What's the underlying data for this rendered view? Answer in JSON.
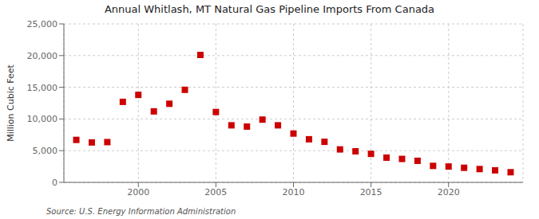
{
  "chart_data": {
    "type": "scatter",
    "title": "Annual Whitlash, MT Natural Gas Pipeline Imports From Canada",
    "ylabel": "Million Cubic Feet",
    "source": "Source: U.S. Energy Information Administration",
    "color": "#cc0000",
    "marker": "square",
    "grid": true,
    "x": [
      1996,
      1997,
      1998,
      1999,
      2000,
      2001,
      2002,
      2003,
      2004,
      2005,
      2006,
      2007,
      2008,
      2009,
      2010,
      2011,
      2012,
      2013,
      2014,
      2015,
      2016,
      2017,
      2018,
      2019,
      2020,
      2021,
      2022,
      2023,
      2024
    ],
    "values": [
      6700,
      6300,
      6350,
      12700,
      13800,
      11200,
      12400,
      14600,
      20100,
      11100,
      9000,
      8800,
      9900,
      9000,
      7700,
      6800,
      6400,
      5200,
      4900,
      4500,
      3900,
      3700,
      3400,
      2600,
      2500,
      2300,
      2100,
      1900,
      1600
    ],
    "xlim": [
      1995.2,
      2024.8
    ],
    "xticks": [
      2000,
      2005,
      2010,
      2015,
      2020
    ],
    "ylim": [
      0,
      25000
    ],
    "yticks": [
      0,
      {
        "value": 5000,
        "label": "5,000"
      },
      {
        "value": 10000,
        "label": "10,000"
      },
      {
        "value": 15000,
        "label": "15,000"
      },
      {
        "value": 20000,
        "label": "20,000"
      },
      {
        "value": 25000,
        "label": "25,000"
      }
    ]
  }
}
